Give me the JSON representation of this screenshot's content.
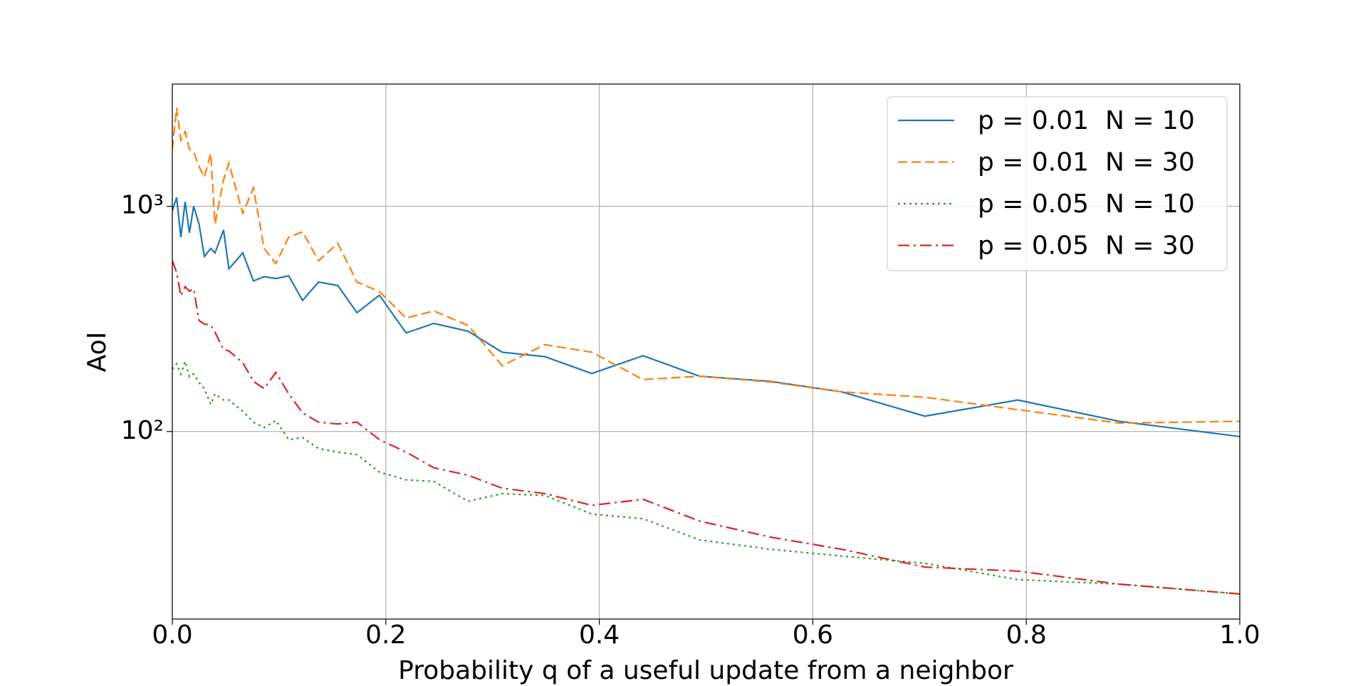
{
  "chart_data": {
    "type": "line",
    "xlabel": "Probability q of a useful update from a neighbor",
    "ylabel": "AoI",
    "yscale": "log",
    "grid": true,
    "legend": "upper right",
    "xlim": [
      0,
      1
    ],
    "ylim": [
      14.7,
      3490
    ],
    "xticks": [
      {
        "value": 0,
        "label": "0.0"
      },
      0.2,
      0.4,
      0.6,
      0.8,
      {
        "value": 1,
        "label": "1.0"
      }
    ],
    "yticks": [
      {
        "value": 100,
        "label": "10²"
      },
      {
        "value": 1000,
        "label": "10³"
      }
    ],
    "x": [
      0,
      0.004,
      0.008,
      0.012,
      0.016,
      0.02,
      0.025,
      0.03,
      0.036,
      0.04,
      0.048,
      0.053,
      0.066,
      0.076,
      0.086,
      0.097,
      0.109,
      0.122,
      0.137,
      0.155,
      0.173,
      0.194,
      0.219,
      0.245,
      0.277,
      0.309,
      0.349,
      0.393,
      0.441,
      0.494,
      0.56,
      0.627,
      0.705,
      0.792,
      0.887,
      1.0
    ],
    "series": [
      {
        "name": "p = 0.01  N = 10",
        "color": "#1f77b4",
        "dash": "solid",
        "values": [
          955,
          1094,
          730,
          1046,
          763,
          1000,
          835,
          599,
          650,
          621,
          785,
          528,
          621,
          466,
          487,
          478,
          491,
          382,
          461,
          445,
          337,
          403,
          274,
          302,
          279,
          225,
          215,
          181,
          217,
          176,
          167,
          150,
          117,
          138,
          111,
          95
        ]
      },
      {
        "name": "p = 0.01  N = 30",
        "color": "#ff7f0e",
        "dash": "dashed",
        "values": [
          1794,
          2738,
          1963,
          2146,
          1794,
          1750,
          1500,
          1350,
          1715,
          835,
          1310,
          1555,
          930,
          1208,
          650,
          557,
          730,
          770,
          573,
          685,
          461,
          418,
          319,
          343,
          296,
          196,
          243,
          225,
          170,
          176,
          166,
          150,
          142,
          125,
          109,
          111
        ]
      },
      {
        "name": "p = 0.05  N = 10",
        "color": "#2ca02c",
        "dash": "dotted",
        "values": [
          189,
          200,
          180,
          205,
          175,
          180,
          165,
          155,
          132,
          147,
          138,
          138,
          123,
          110,
          104,
          112,
          92,
          94,
          84,
          81,
          79,
          66,
          61,
          60,
          49,
          53,
          52,
          43,
          41,
          33,
          30,
          28,
          26,
          22,
          21,
          19
        ]
      },
      {
        "name": "p = 0.05  N = 30",
        "color": "#d62728",
        "dash": "dashdot",
        "values": [
          573,
          509,
          400,
          440,
          420,
          430,
          311,
          300,
          297,
          276,
          231,
          228,
          202,
          167,
          155,
          183,
          147,
          121,
          110,
          108,
          110,
          92,
          81,
          69,
          64,
          56,
          53,
          47,
          50,
          40,
          34,
          30,
          25,
          24,
          21,
          19
        ]
      }
    ]
  }
}
